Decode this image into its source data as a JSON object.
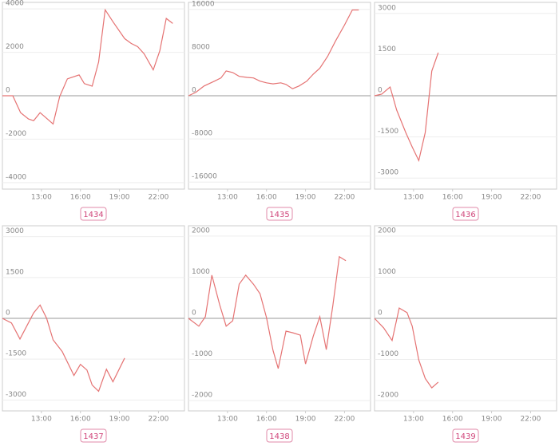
{
  "chart_data": [
    {
      "type": "line",
      "title": "1434",
      "color": "#e57373",
      "grid": true,
      "x": [
        10,
        10.8,
        11.4,
        12.0,
        12.4,
        12.9,
        13.4,
        13.9,
        14.4,
        15.0,
        15.9,
        16.3,
        16.9,
        17.4,
        17.9,
        18.5,
        19.4,
        19.9,
        20.4,
        20.9,
        21.6,
        22.1,
        22.6,
        23.1
      ],
      "values": [
        0,
        0,
        -780,
        -1070,
        -1150,
        -780,
        -1040,
        -1300,
        -40,
        780,
        960,
        560,
        440,
        1560,
        3960,
        3410,
        2630,
        2410,
        2260,
        1930,
        1190,
        2070,
        3560,
        3330
      ],
      "xlim": [
        10,
        24
      ],
      "xticks": [
        {
          "value": 13,
          "label": "13:00"
        },
        {
          "value": 16,
          "label": "16:00"
        },
        {
          "value": 19,
          "label": "19:00"
        },
        {
          "value": 22,
          "label": "22:00"
        }
      ],
      "ylim": [
        -4300,
        4300
      ],
      "yticks": [
        4000,
        2000,
        0,
        -2000,
        -4000
      ]
    },
    {
      "type": "line",
      "title": "1435",
      "color": "#e57373",
      "grid": true,
      "x": [
        10,
        10.55,
        11.2,
        12.0,
        12.5,
        12.9,
        13.4,
        13.9,
        14.5,
        15.0,
        15.5,
        16.0,
        16.5,
        17.1,
        17.5,
        18.0,
        18.5,
        19.1,
        19.6,
        20.1,
        20.7,
        21.3,
        22.0,
        22.6,
        23.1
      ],
      "values": [
        0,
        600,
        1800,
        2700,
        3300,
        4600,
        4300,
        3600,
        3400,
        3300,
        2700,
        2400,
        2200,
        2400,
        2100,
        1300,
        1800,
        2700,
        4000,
        5100,
        7300,
        10100,
        13100,
        15900,
        15900
      ],
      "xlim": [
        10,
        24
      ],
      "xticks": [
        {
          "value": 13,
          "label": "13:00"
        },
        {
          "value": 16,
          "label": "16:00"
        },
        {
          "value": 19,
          "label": "19:00"
        },
        {
          "value": 22,
          "label": "22:00"
        }
      ],
      "ylim": [
        -17300,
        17300
      ],
      "yticks": [
        16000,
        8000,
        0,
        -8000,
        -16000
      ]
    },
    {
      "type": "line",
      "title": "1436",
      "color": "#e57373",
      "grid": true,
      "x": [
        10,
        10.55,
        11.2,
        11.7,
        12.4,
        12.9,
        13.4,
        13.9,
        14.4,
        14.9
      ],
      "values": [
        0,
        60,
        320,
        -520,
        -1340,
        -1870,
        -2360,
        -1340,
        900,
        1570
      ],
      "xlim": [
        10,
        24
      ],
      "xticks": [
        {
          "value": 13,
          "label": "13:00"
        },
        {
          "value": 16,
          "label": "16:00"
        },
        {
          "value": 19,
          "label": "19:00"
        },
        {
          "value": 22,
          "label": "22:00"
        }
      ],
      "ylim": [
        -3400,
        3400
      ],
      "yticks": [
        3000,
        1500,
        0,
        -1500,
        -3000
      ]
    },
    {
      "type": "line",
      "title": "1437",
      "color": "#e57373",
      "grid": true,
      "x": [
        10,
        10.7,
        11.35,
        12.4,
        12.9,
        13.4,
        13.9,
        14.6,
        15.5,
        16.0,
        16.5,
        16.9,
        17.4,
        18.0,
        18.5,
        19.4
      ],
      "values": [
        0,
        -170,
        -760,
        200,
        490,
        0,
        -790,
        -1220,
        -2100,
        -1690,
        -1900,
        -2450,
        -2680,
        -1870,
        -2330,
        -1460
      ],
      "xlim": [
        10,
        24
      ],
      "xticks": [
        {
          "value": 13,
          "label": "13:00"
        },
        {
          "value": 16,
          "label": "16:00"
        },
        {
          "value": 19,
          "label": "19:00"
        },
        {
          "value": 22,
          "label": "22:00"
        }
      ],
      "ylim": [
        -3400,
        3400
      ],
      "yticks": [
        3000,
        1500,
        0,
        -1500,
        -3000
      ]
    },
    {
      "type": "line",
      "title": "1438",
      "color": "#e57373",
      "grid": true,
      "x": [
        10,
        10.8,
        11.3,
        11.8,
        12.4,
        12.9,
        13.4,
        13.9,
        14.4,
        15.0,
        15.5,
        16.0,
        16.5,
        16.9,
        17.5,
        18.0,
        18.6,
        19.0,
        19.6,
        20.1,
        20.6,
        21.1,
        21.6,
        22.1
      ],
      "values": [
        0,
        -190,
        40,
        1050,
        330,
        -190,
        -60,
        830,
        1050,
        830,
        600,
        20,
        -780,
        -1220,
        -310,
        -350,
        -410,
        -1110,
        -430,
        40,
        -760,
        310,
        1500,
        1400
      ],
      "xlim": [
        10,
        24
      ],
      "xticks": [
        {
          "value": 13,
          "label": "13:00"
        },
        {
          "value": 16,
          "label": "16:00"
        },
        {
          "value": 19,
          "label": "19:00"
        },
        {
          "value": 22,
          "label": "22:00"
        }
      ],
      "ylim": [
        -2250,
        2250
      ],
      "yticks": [
        2000,
        1000,
        0,
        -1000,
        -2000
      ]
    },
    {
      "type": "line",
      "title": "1439",
      "color": "#e57373",
      "grid": true,
      "x": [
        10,
        10.7,
        11.35,
        11.9,
        12.5,
        12.9,
        13.4,
        13.9,
        14.4,
        14.9
      ],
      "values": [
        0,
        -230,
        -540,
        250,
        140,
        -190,
        -1010,
        -1460,
        -1690,
        -1550
      ],
      "xlim": [
        10,
        24
      ],
      "xticks": [
        {
          "value": 13,
          "label": "13:00"
        },
        {
          "value": 16,
          "label": "16:00"
        },
        {
          "value": 19,
          "label": "19:00"
        },
        {
          "value": 22,
          "label": "22:00"
        }
      ],
      "ylim": [
        -2250,
        2250
      ],
      "yticks": [
        2000,
        1000,
        0,
        -1000,
        -2000
      ]
    }
  ]
}
